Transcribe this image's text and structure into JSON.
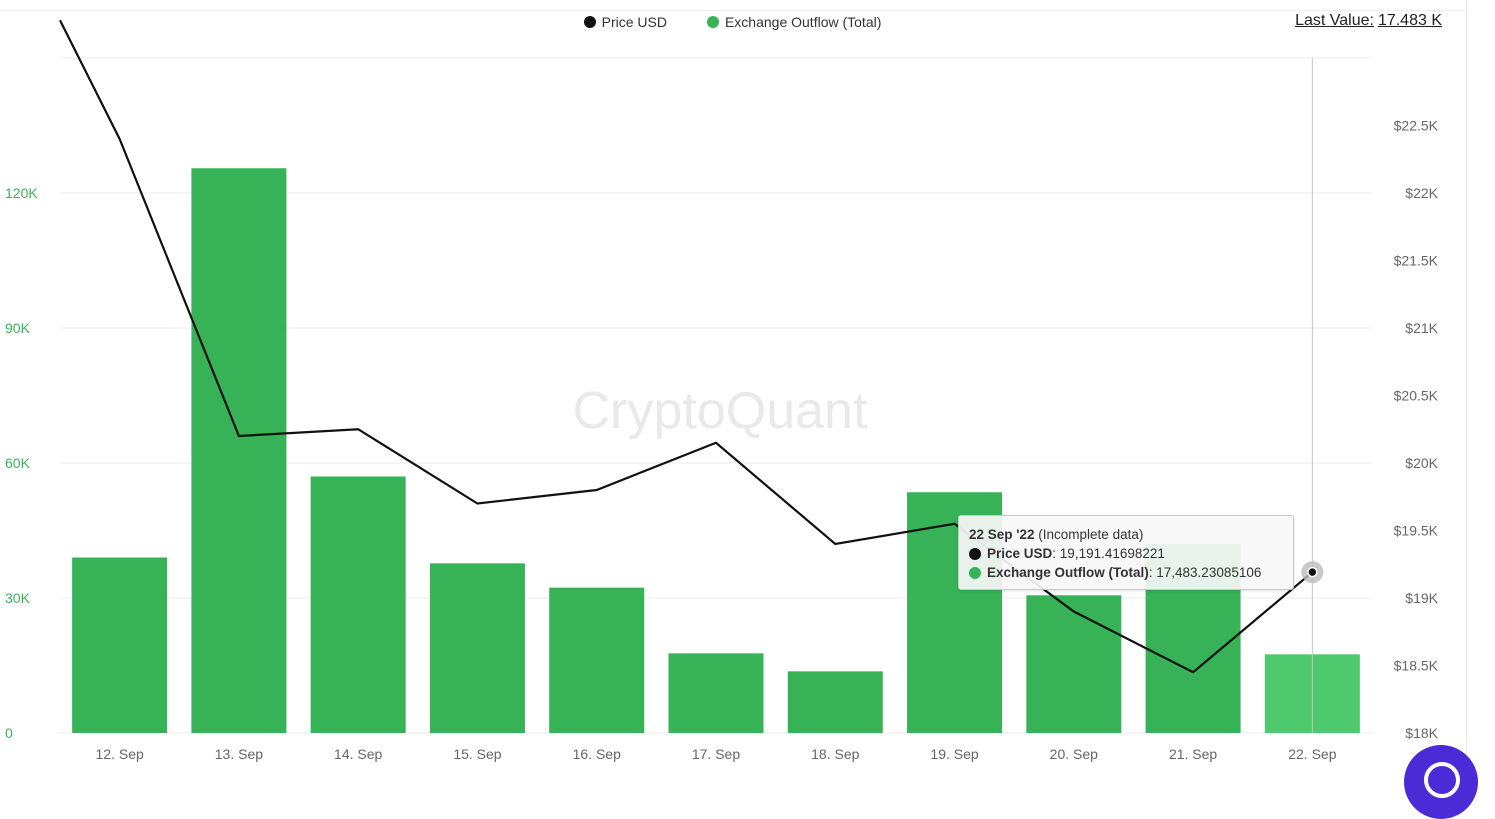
{
  "last_value": {
    "label": "Last Value:",
    "value": "17.483 K"
  },
  "watermark": "CryptoQuant",
  "tooltip": {
    "date": "22 Sep '22",
    "note": "(Incomplete data)",
    "rows": [
      {
        "name": "Price USD",
        "value": "19,191.41698221",
        "color": "#111111"
      },
      {
        "name": "Exchange Outflow (Total)",
        "value": "17,483.23085106",
        "color": "#3ab25c"
      }
    ]
  },
  "chart_data": {
    "type": "bar",
    "categories": [
      "12. Sep",
      "13. Sep",
      "14. Sep",
      "15. Sep",
      "16. Sep",
      "17. Sep",
      "18. Sep",
      "19. Sep",
      "20. Sep",
      "21. Sep",
      "22. Sep"
    ],
    "series": [
      {
        "name": "Price USD",
        "type": "line",
        "axis": "right",
        "color": "#111111",
        "values": [
          22400,
          20200,
          20250,
          19700,
          19800,
          20150,
          19400,
          19550,
          18900,
          18450,
          19191.42
        ]
      },
      {
        "name": "Exchange Outflow (Total)",
        "type": "bar",
        "axis": "left",
        "color": "#37b257",
        "highlight_color": "#4ec96e",
        "values": [
          39000,
          125500,
          57000,
          37700,
          32300,
          17700,
          13700,
          53500,
          30600,
          42000,
          17483.23
        ]
      }
    ],
    "y_left": {
      "ticks": [
        "0",
        "30K",
        "60K",
        "90K",
        "120K"
      ],
      "tick_values": [
        0,
        30000,
        60000,
        90000,
        120000
      ],
      "range": [
        0,
        150000
      ],
      "color": "#3ab25c"
    },
    "y_right": {
      "ticks": [
        "$18K",
        "$18.5K",
        "$19K",
        "$19.5K",
        "$20K",
        "$20.5K",
        "$21K",
        "$21.5K",
        "$22K",
        "$22.5K"
      ],
      "tick_values": [
        18000,
        18500,
        19000,
        19500,
        20000,
        20500,
        21000,
        21500,
        22000,
        22500
      ],
      "range": [
        18000,
        23000
      ]
    },
    "hover_index": 10,
    "grid": true,
    "legend_position": "top-center"
  }
}
